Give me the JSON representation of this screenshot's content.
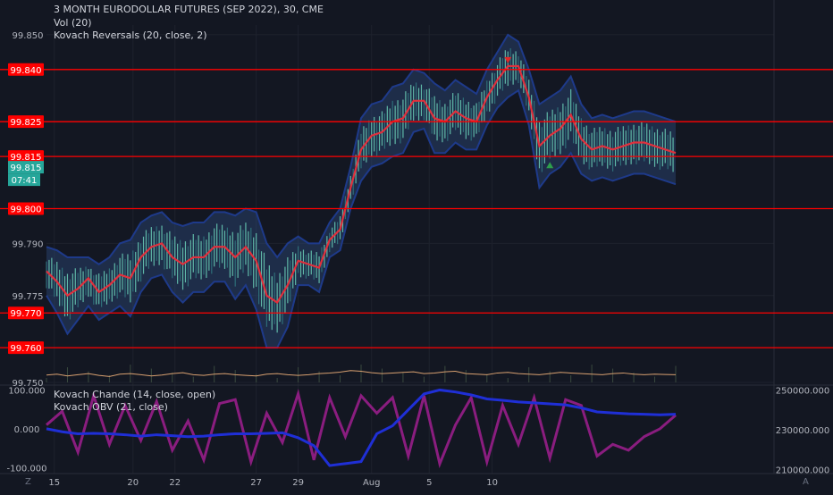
{
  "header": {
    "title": "3 MONTH EURODOLLAR FUTURES (SEP 2022), 30, CME",
    "indicator_vol": "Vol (20)",
    "indicator_reversals": "Kovach Reversals (20, close, 2)"
  },
  "lower_pane": {
    "indicator_chande": "Kovach Chande (14, close, open)",
    "indicator_obv": "Kovach OBV (21, close)"
  },
  "corner_labels": {
    "bottom_left": "Z",
    "bottom_right": "A"
  },
  "colors": {
    "background": "#131722",
    "level_line": "#ff0000",
    "band": "#1e3a8a",
    "basis": "#e0303d",
    "up_bar": "#5fb8a8",
    "down_bar": "#2e6d78",
    "volume_line": "#d8a070",
    "chande": "#8a1d7f",
    "obv": "#1f2fd6",
    "current_price": "#26a69a"
  },
  "chart_data": [
    {
      "type": "line",
      "title": "3 MONTH EURODOLLAR FUTURES (SEP 2022), 30, CME",
      "x_ticks": [
        "15",
        "20",
        "22",
        "27",
        "29",
        "Aug",
        "5",
        "10"
      ],
      "y_ticks": [
        "99.850",
        "99.840",
        "99.825",
        "99.815",
        "99.800",
        "99.790",
        "99.775",
        "99.770",
        "99.760",
        "99.750"
      ],
      "ylim": [
        99.7495,
        99.8528
      ],
      "horizontal_levels": [
        99.84,
        99.825,
        99.815,
        99.8,
        99.77,
        99.76
      ],
      "level_labels": [
        "99.840",
        "99.825",
        "99.815",
        "99.800",
        "99.770",
        "99.760"
      ],
      "current_price": {
        "value": 99.815,
        "label": "99.815",
        "countdown": "07:41"
      },
      "series": [
        {
          "name": "Kovach Reversals (20, close, 2)",
          "x": [
            0,
            4,
            8,
            12,
            16,
            20,
            24,
            28,
            32,
            36,
            40,
            44,
            48,
            52,
            56,
            60,
            64,
            68,
            72,
            76,
            80,
            84,
            88,
            92,
            96,
            100,
            104,
            108,
            112,
            116,
            120,
            124,
            128,
            132,
            136,
            140,
            144,
            148,
            152,
            156,
            160,
            164,
            168,
            172,
            176,
            180,
            184,
            188,
            192,
            196,
            200,
            204,
            208,
            212,
            216,
            220,
            224,
            228,
            232,
            236,
            240
          ],
          "basis": [
            99.782,
            99.779,
            99.775,
            99.777,
            99.78,
            99.776,
            99.778,
            99.781,
            99.78,
            99.786,
            99.789,
            99.79,
            99.786,
            99.784,
            99.786,
            99.786,
            99.789,
            99.789,
            99.786,
            99.789,
            99.785,
            99.775,
            99.773,
            99.778,
            99.785,
            99.784,
            99.783,
            99.791,
            99.794,
            99.806,
            99.817,
            99.821,
            99.822,
            99.825,
            99.826,
            99.831,
            99.831,
            99.826,
            99.825,
            99.828,
            99.826,
            99.825,
            99.832,
            99.837,
            99.841,
            99.841,
            99.832,
            99.818,
            99.821,
            99.823,
            99.827,
            99.82,
            99.817,
            99.818,
            99.817,
            99.818,
            99.819,
            99.819,
            99.818,
            99.817,
            99.816
          ],
          "upper": [
            99.789,
            99.788,
            99.786,
            99.786,
            99.786,
            99.784,
            99.786,
            99.79,
            99.791,
            99.796,
            99.798,
            99.799,
            99.796,
            99.795,
            99.796,
            99.796,
            99.799,
            99.799,
            99.798,
            99.8,
            99.799,
            99.79,
            99.786,
            99.79,
            99.792,
            99.79,
            99.79,
            99.796,
            99.8,
            99.812,
            99.826,
            99.83,
            99.831,
            99.835,
            99.836,
            99.84,
            99.839,
            99.836,
            99.834,
            99.837,
            99.835,
            99.833,
            99.84,
            99.845,
            99.85,
            99.848,
            99.84,
            99.83,
            99.832,
            99.834,
            99.838,
            99.83,
            99.826,
            99.827,
            99.826,
            99.827,
            99.828,
            99.828,
            99.827,
            99.826,
            99.825
          ],
          "lower": [
            99.775,
            99.77,
            99.764,
            99.768,
            99.772,
            99.768,
            99.77,
            99.772,
            99.769,
            99.776,
            99.78,
            99.781,
            99.776,
            99.773,
            99.776,
            99.776,
            99.779,
            99.779,
            99.774,
            99.778,
            99.771,
            99.76,
            99.76,
            99.766,
            99.778,
            99.778,
            99.776,
            99.786,
            99.788,
            99.8,
            99.808,
            99.812,
            99.813,
            99.815,
            99.816,
            99.822,
            99.823,
            99.816,
            99.816,
            99.819,
            99.817,
            99.817,
            99.824,
            99.829,
            99.832,
            99.834,
            99.824,
            99.806,
            99.81,
            99.812,
            99.816,
            99.81,
            99.808,
            99.809,
            99.808,
            99.809,
            99.81,
            99.81,
            99.809,
            99.808,
            99.807
          ]
        },
        {
          "name": "Vol (20)",
          "volume_ma": [
            0.25,
            0.28,
            0.22,
            0.26,
            0.3,
            0.24,
            0.2,
            0.28,
            0.3,
            0.26,
            0.22,
            0.25,
            0.3,
            0.33,
            0.26,
            0.24,
            0.28,
            0.3,
            0.26,
            0.24,
            0.22,
            0.28,
            0.3,
            0.26,
            0.24,
            0.26,
            0.3,
            0.32,
            0.35,
            0.4,
            0.38,
            0.33,
            0.3,
            0.32,
            0.34,
            0.36,
            0.3,
            0.32,
            0.36,
            0.38,
            0.3,
            0.28,
            0.26,
            0.32,
            0.34,
            0.3,
            0.28,
            0.26,
            0.3,
            0.34,
            0.32,
            0.3,
            0.28,
            0.26,
            0.3,
            0.32,
            0.28,
            0.26,
            0.28,
            0.27,
            0.26
          ]
        }
      ],
      "markers": [
        {
          "type": "sell",
          "x": 176,
          "value": 99.8423
        },
        {
          "type": "buy",
          "x": 192,
          "value": 99.8129
        }
      ]
    },
    {
      "type": "line",
      "y_ticks_left": [
        "100.000",
        "0.000",
        "-100.000"
      ],
      "y_ticks_right": [
        "250000.000",
        "230000.000",
        "210000.000"
      ],
      "ylim_left": [
        -115,
        110
      ],
      "ylim_right": [
        208000,
        252000
      ],
      "series": [
        {
          "name": "Kovach Chande (14, close, open)",
          "x": [
            0,
            6,
            12,
            18,
            24,
            30,
            36,
            42,
            48,
            54,
            60,
            66,
            72,
            78,
            84,
            90,
            96,
            102,
            108,
            114,
            120,
            126,
            132,
            138,
            144,
            150,
            156,
            162,
            168,
            174,
            180,
            186,
            192,
            198,
            204,
            210,
            216,
            222,
            228,
            234,
            240
          ],
          "values": [
            10,
            45,
            -60,
            85,
            -40,
            60,
            -30,
            70,
            -55,
            20,
            -80,
            65,
            75,
            -85,
            40,
            -35,
            90,
            -80,
            80,
            -20,
            85,
            40,
            80,
            -70,
            85,
            -90,
            10,
            80,
            -85,
            60,
            -40,
            80,
            -75,
            75,
            60,
            -70,
            -40,
            -55,
            -20,
            0,
            35
          ]
        },
        {
          "name": "Kovach OBV (21, close)",
          "x": [
            0,
            6,
            12,
            18,
            24,
            30,
            36,
            42,
            48,
            54,
            60,
            66,
            72,
            78,
            84,
            90,
            96,
            102,
            108,
            114,
            120,
            126,
            132,
            138,
            144,
            150,
            156,
            162,
            168,
            174,
            180,
            186,
            192,
            198,
            204,
            210,
            216,
            222,
            228,
            234,
            240
          ],
          "values": [
            230500,
            229000,
            228000,
            228200,
            228000,
            227500,
            226800,
            227500,
            227000,
            226500,
            226800,
            227500,
            228000,
            228000,
            228200,
            228500,
            226000,
            222000,
            212000,
            213000,
            214000,
            228000,
            232000,
            240000,
            248000,
            250000,
            249000,
            247500,
            245500,
            244800,
            244000,
            243500,
            243000,
            242500,
            241000,
            239000,
            238500,
            238000,
            237800,
            237500,
            237800
          ]
        }
      ]
    }
  ]
}
